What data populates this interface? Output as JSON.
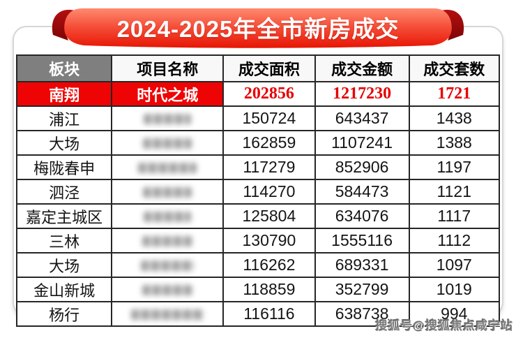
{
  "banner": {
    "title": "2024-2025年全市新房成交"
  },
  "table": {
    "columns": [
      "板块",
      "项目名称",
      "成交面积",
      "成交金额",
      "成交套数"
    ],
    "rows": [
      {
        "district": "南翔",
        "project": "时代之城",
        "project_hidden": false,
        "area": "202856",
        "amount": "1217230",
        "units": "1721",
        "highlight": true
      },
      {
        "district": "浦江",
        "project": "",
        "project_hidden": true,
        "area": "150724",
        "amount": "643437",
        "units": "1438",
        "highlight": false
      },
      {
        "district": "大场",
        "project": "",
        "project_hidden": true,
        "area": "162859",
        "amount": "1107241",
        "units": "1388",
        "highlight": false
      },
      {
        "district": "梅陇春申",
        "project": "",
        "project_hidden": true,
        "area": "117279",
        "amount": "852906",
        "units": "1197",
        "highlight": false
      },
      {
        "district": "泗泾",
        "project": "",
        "project_hidden": true,
        "area": "114270",
        "amount": "584473",
        "units": "1121",
        "highlight": false
      },
      {
        "district": "嘉定主城区",
        "project": "",
        "project_hidden": true,
        "area": "125804",
        "amount": "634076",
        "units": "1117",
        "highlight": false
      },
      {
        "district": "三林",
        "project": "",
        "project_hidden": true,
        "area": "130790",
        "amount": "1555116",
        "units": "1112",
        "highlight": false
      },
      {
        "district": "大场",
        "project": "",
        "project_hidden": true,
        "area": "116262",
        "amount": "689331",
        "units": "1097",
        "highlight": false
      },
      {
        "district": "金山新城",
        "project": "",
        "project_hidden": true,
        "area": "118859",
        "amount": "352799",
        "units": "1019",
        "highlight": false
      },
      {
        "district": "杨行",
        "project": "",
        "project_hidden": true,
        "area": "116116",
        "amount": "638738",
        "units": "994",
        "highlight": false
      }
    ]
  },
  "watermark": {
    "text": "搜狐号@搜狐焦点咸宁站"
  },
  "colors": {
    "ribbon_top": "#ff8a70",
    "ribbon_bottom": "#e71504",
    "ribbon_fold": "#9c0808",
    "highlight_bg": "#ee0404",
    "highlight_number": "#e60000",
    "header_gray": "#7f7f7f",
    "grid_border": "#262626"
  },
  "chart_data": {
    "type": "table",
    "title": "2024-2025年全市新房成交",
    "columns": [
      "板块",
      "项目名称",
      "成交面积",
      "成交金额",
      "成交套数"
    ],
    "rows": [
      [
        "南翔",
        "时代之城",
        202856,
        1217230,
        1721
      ],
      [
        "浦江",
        "(blurred)",
        150724,
        643437,
        1438
      ],
      [
        "大场",
        "(blurred)",
        162859,
        1107241,
        1388
      ],
      [
        "梅陇春申",
        "(blurred)",
        117279,
        852906,
        1197
      ],
      [
        "泗泾",
        "(blurred)",
        114270,
        584473,
        1121
      ],
      [
        "嘉定主城区",
        "(blurred)",
        125804,
        634076,
        1117
      ],
      [
        "三林",
        "(blurred)",
        130790,
        1555116,
        1112
      ],
      [
        "大场",
        "(blurred)",
        116262,
        689331,
        1097
      ],
      [
        "金山新城",
        "(blurred)",
        118859,
        352799,
        1019
      ],
      [
        "杨行",
        "(blurred)",
        116116,
        638738,
        994
      ]
    ],
    "highlighted_row": 0
  }
}
